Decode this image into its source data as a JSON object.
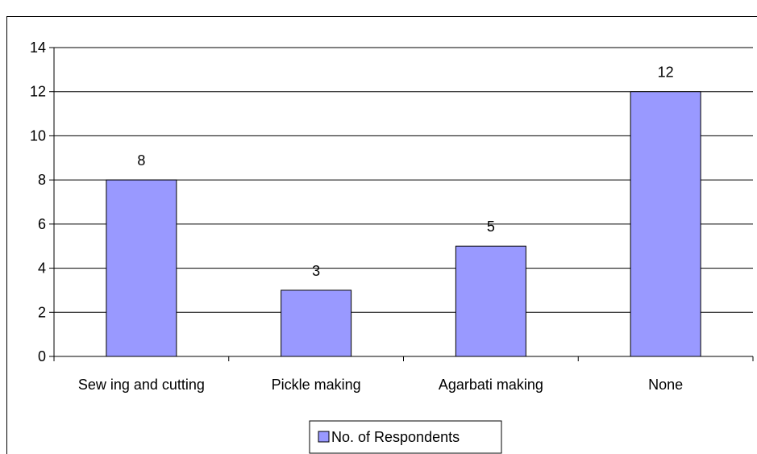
{
  "chart_data": {
    "type": "bar",
    "categories": [
      "Sew ing and cutting",
      "Pickle making",
      "Agarbati making",
      "None"
    ],
    "series": [
      {
        "name": "No. of Respondents",
        "values": [
          8,
          3,
          5,
          12
        ],
        "color": "#9999ff"
      }
    ],
    "ylim": [
      0,
      14
    ],
    "yticks": [
      "0",
      "2",
      "4",
      "6",
      "8",
      "10",
      "12",
      "14"
    ],
    "data_labels": [
      "8",
      "3",
      "5",
      "12"
    ],
    "grid": true,
    "legend_position": "bottom-center"
  }
}
